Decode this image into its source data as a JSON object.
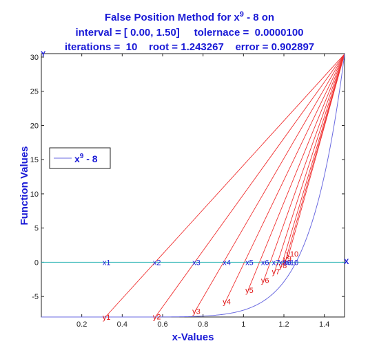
{
  "chart_data": {
    "type": "line",
    "title_lines": [
      [
        "False Position Method for x",
        "9",
        " - 8 on"
      ],
      [
        "interval = [ 0.00, 1.50]     tolernace =  0.0000100"
      ],
      [
        "iterations =  10    root = 1.243267    error = 0.902897"
      ]
    ],
    "xlabel": "x-Values",
    "ylabel": "Function Values",
    "xlim": [
      0,
      1.5
    ],
    "ylim": [
      -8,
      30.5
    ],
    "xticks": [
      0.2,
      0.4,
      0.6,
      0.8,
      1,
      1.2,
      1.4
    ],
    "xtick_labels": [
      "0.2",
      "0.4",
      "0.6",
      "0.8",
      "1",
      "1.2",
      "1.4"
    ],
    "yticks": [
      -5,
      0,
      5,
      10,
      15,
      20,
      25,
      30
    ],
    "ytick_labels": [
      "-5",
      "0",
      "5",
      "10",
      "15",
      "20",
      "25",
      "30"
    ],
    "x_axis_end_label": "X",
    "y_axis_end_label": "Y",
    "legend": {
      "base": "x",
      "sup": "9",
      "tail": " - 8",
      "placement": "left"
    },
    "fixed_point": [
      1.5,
      30.44
    ],
    "iterates_x": [
      0.3168,
      0.5654,
      0.7606,
      0.9112,
      1.023,
      1.1007,
      1.1542,
      1.1886,
      1.211,
      1.2251
    ],
    "iterates_y": [
      -8.0,
      -7.94,
      -7.16,
      -5.74,
      -4.07,
      -2.63,
      -1.37,
      -0.46,
      0.56,
      1.24
    ],
    "x_labels": [
      "x1",
      "x2",
      "x3",
      "x4",
      "x5",
      "x6",
      "x7",
      "x8",
      "x9",
      "x10"
    ],
    "y_labels": [
      "y1",
      "y2",
      "y3",
      "y4",
      "y5",
      "y6",
      "y7",
      "y8",
      "y9",
      "y10"
    ],
    "colors": {
      "curve": "#6a6ae0",
      "secants": "#f03030",
      "zero_line": "#27b3b3",
      "labels_x": "#1a1ad6",
      "labels_y": "#e01010"
    }
  }
}
